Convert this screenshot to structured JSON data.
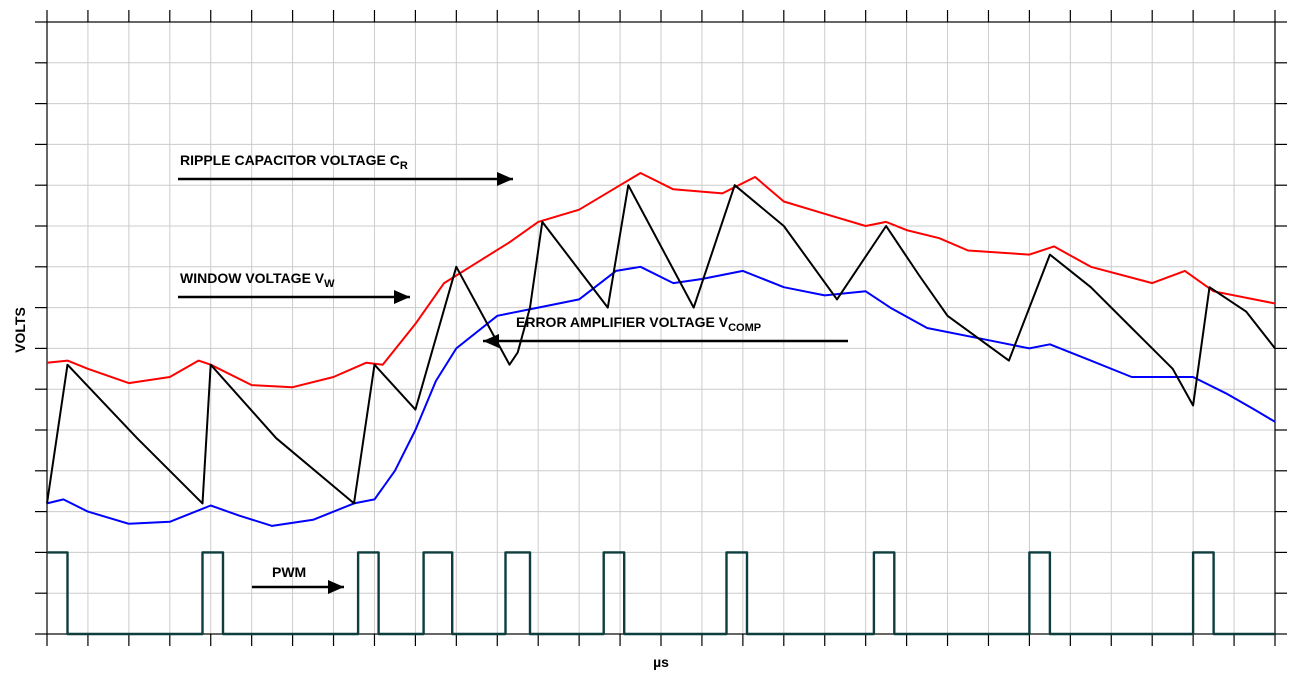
{
  "chart_data": {
    "type": "line",
    "xlabel": "µs",
    "ylabel": "VOLTS",
    "grid": true,
    "ticks": {
      "x_count": 30,
      "y_count": 15
    },
    "series": [
      {
        "name": "RIPPLE CAPACITOR VOLTAGE C_R",
        "color": "#ff0000",
        "points": [
          [
            0,
            6.65
          ],
          [
            0.5,
            6.7
          ],
          [
            1,
            6.5
          ],
          [
            2,
            6.15
          ],
          [
            3,
            6.3
          ],
          [
            3.7,
            6.7
          ],
          [
            4,
            6.6
          ],
          [
            5,
            6.1
          ],
          [
            6,
            6.05
          ],
          [
            7,
            6.3
          ],
          [
            7.8,
            6.65
          ],
          [
            8.2,
            6.6
          ],
          [
            9,
            7.6
          ],
          [
            9.7,
            8.6
          ],
          [
            10.5,
            9.1
          ],
          [
            11.3,
            9.6
          ],
          [
            12,
            10.1
          ],
          [
            13,
            10.4
          ],
          [
            14,
            11
          ],
          [
            14.5,
            11.3
          ],
          [
            15.3,
            10.9
          ],
          [
            16.5,
            10.8
          ],
          [
            17.3,
            11.2
          ],
          [
            18,
            10.6
          ],
          [
            19,
            10.3
          ],
          [
            20,
            10.0
          ],
          [
            20.5,
            10.1
          ],
          [
            21,
            9.9
          ],
          [
            21.8,
            9.7
          ],
          [
            22.5,
            9.4
          ],
          [
            24,
            9.3
          ],
          [
            24.6,
            9.5
          ],
          [
            25.5,
            9.0
          ],
          [
            27,
            8.6
          ],
          [
            27.8,
            8.9
          ],
          [
            28.5,
            8.4
          ],
          [
            30,
            8.1
          ]
        ]
      },
      {
        "name": "WINDOW VOLTAGE V_W",
        "color": "#ff0000",
        "points": []
      },
      {
        "name": "ERROR AMPLIFIER VOLTAGE V_COMP",
        "color": "#0000ff",
        "points": [
          [
            0,
            3.2
          ],
          [
            0.4,
            3.3
          ],
          [
            1,
            3.0
          ],
          [
            2,
            2.7
          ],
          [
            3,
            2.75
          ],
          [
            4,
            3.15
          ],
          [
            4.7,
            2.9
          ],
          [
            5.5,
            2.65
          ],
          [
            6.5,
            2.8
          ],
          [
            7.5,
            3.2
          ],
          [
            8,
            3.3
          ],
          [
            8.5,
            4.0
          ],
          [
            9,
            5.0
          ],
          [
            9.5,
            6.2
          ],
          [
            10,
            7.0
          ],
          [
            11,
            7.8
          ],
          [
            12,
            8.0
          ],
          [
            13,
            8.2
          ],
          [
            13.9,
            8.9
          ],
          [
            14.5,
            9.0
          ],
          [
            15.3,
            8.6
          ],
          [
            16,
            8.7
          ],
          [
            17,
            8.9
          ],
          [
            18,
            8.5
          ],
          [
            19,
            8.3
          ],
          [
            20,
            8.4
          ],
          [
            20.6,
            8.0
          ],
          [
            21.5,
            7.5
          ],
          [
            23,
            7.2
          ],
          [
            24,
            7.0
          ],
          [
            24.5,
            7.1
          ],
          [
            25.5,
            6.7
          ],
          [
            26.5,
            6.3
          ],
          [
            27.5,
            6.3
          ],
          [
            28,
            6.3
          ],
          [
            28.8,
            5.9
          ],
          [
            29.5,
            5.5
          ],
          [
            30,
            5.2
          ]
        ]
      },
      {
        "name": "PWM",
        "color": "#0d3d3d",
        "points": [
          [
            0,
            2
          ],
          [
            0.5,
            2
          ],
          [
            0.5,
            0
          ],
          [
            3.8,
            0
          ],
          [
            3.8,
            2
          ],
          [
            4.3,
            2
          ],
          [
            4.3,
            0
          ],
          [
            7.6,
            0
          ],
          [
            7.6,
            2
          ],
          [
            8.1,
            2
          ],
          [
            8.1,
            0
          ],
          [
            9.2,
            0
          ],
          [
            9.2,
            2
          ],
          [
            9.9,
            2
          ],
          [
            9.9,
            0
          ],
          [
            11.2,
            0
          ],
          [
            11.2,
            2
          ],
          [
            11.8,
            2
          ],
          [
            11.8,
            0
          ],
          [
            13.6,
            0
          ],
          [
            13.6,
            2
          ],
          [
            14.1,
            2
          ],
          [
            14.1,
            0
          ],
          [
            16.6,
            0
          ],
          [
            16.6,
            2
          ],
          [
            17.1,
            2
          ],
          [
            17.1,
            0
          ],
          [
            20.2,
            0
          ],
          [
            20.2,
            2
          ],
          [
            20.7,
            2
          ],
          [
            20.7,
            0
          ],
          [
            24.0,
            0
          ],
          [
            24.0,
            2
          ],
          [
            24.5,
            2
          ],
          [
            24.5,
            0
          ],
          [
            28.0,
            0
          ],
          [
            28.0,
            2
          ],
          [
            28.5,
            2
          ],
          [
            28.5,
            0
          ],
          [
            30,
            0
          ]
        ]
      },
      {
        "name": "",
        "color": "#000000",
        "points": [
          [
            0,
            3.2
          ],
          [
            0.5,
            6.6
          ],
          [
            2.2,
            4.8
          ],
          [
            3.8,
            3.2
          ],
          [
            4.0,
            6.6
          ],
          [
            5.6,
            4.8
          ],
          [
            7.5,
            3.2
          ],
          [
            8.0,
            6.6
          ],
          [
            9.0,
            5.5
          ],
          [
            10,
            9.0
          ],
          [
            11.3,
            6.6
          ],
          [
            11.5,
            6.9
          ],
          [
            11.8,
            8.0
          ],
          [
            12.1,
            10.1
          ],
          [
            13.7,
            8.0
          ],
          [
            14.2,
            11.0
          ],
          [
            15.8,
            8.0
          ],
          [
            16.8,
            11.0
          ],
          [
            18.0,
            10.0
          ],
          [
            19.3,
            8.2
          ],
          [
            20.5,
            10.0
          ],
          [
            21.3,
            8.8
          ],
          [
            22.0,
            7.8
          ],
          [
            23.5,
            6.7
          ],
          [
            24.5,
            9.3
          ],
          [
            25.5,
            8.5
          ],
          [
            26.5,
            7.5
          ],
          [
            27.5,
            6.5
          ],
          [
            28.0,
            5.6
          ],
          [
            28.4,
            8.5
          ],
          [
            29.3,
            7.9
          ],
          [
            30,
            7.0
          ]
        ]
      }
    ],
    "annotations": [
      {
        "text": "RIPPLE CAPACITOR VOLTAGE C",
        "sub": "R"
      },
      {
        "text": "WINDOW VOLTAGE V",
        "sub": "W"
      },
      {
        "text": "ERROR AMPLIFIER VOLTAGE V",
        "sub": "COMP"
      },
      {
        "text": "PWM",
        "sub": ""
      }
    ]
  }
}
